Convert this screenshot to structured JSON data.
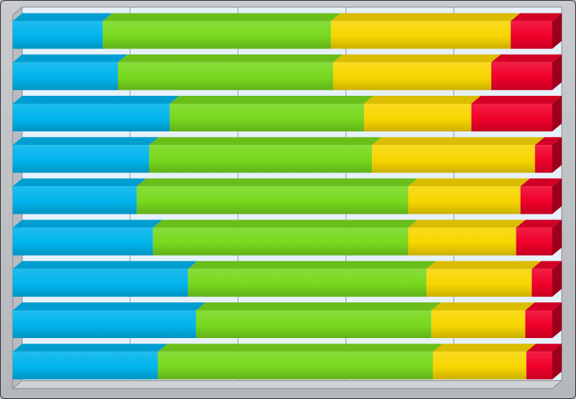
{
  "chart_data": {
    "type": "bar",
    "orientation": "horizontal",
    "stacked": "percent",
    "three_d": true,
    "grid": true,
    "legend": "none",
    "xlim": [
      0,
      100
    ],
    "categories": [
      "",
      "",
      "",
      "",
      "",
      "",
      "",
      "",
      ""
    ],
    "series": [
      {
        "color": "#00b4ec",
        "values": [
          16.7,
          19.5,
          29.1,
          25.3,
          23.0,
          26.0,
          32.5,
          34.0,
          26.9
        ]
      },
      {
        "color": "#78d81e",
        "values": [
          42.3,
          39.9,
          36.0,
          41.3,
          50.3,
          47.3,
          44.2,
          43.6,
          51.0
        ]
      },
      {
        "color": "#f8d600",
        "values": [
          33.3,
          29.3,
          19.9,
          30.2,
          20.8,
          20.0,
          19.5,
          17.4,
          17.3
        ]
      },
      {
        "color": "#f0002a",
        "values": [
          7.7,
          11.3,
          15.0,
          3.2,
          5.9,
          6.7,
          3.8,
          5.0,
          4.8
        ]
      }
    ]
  }
}
